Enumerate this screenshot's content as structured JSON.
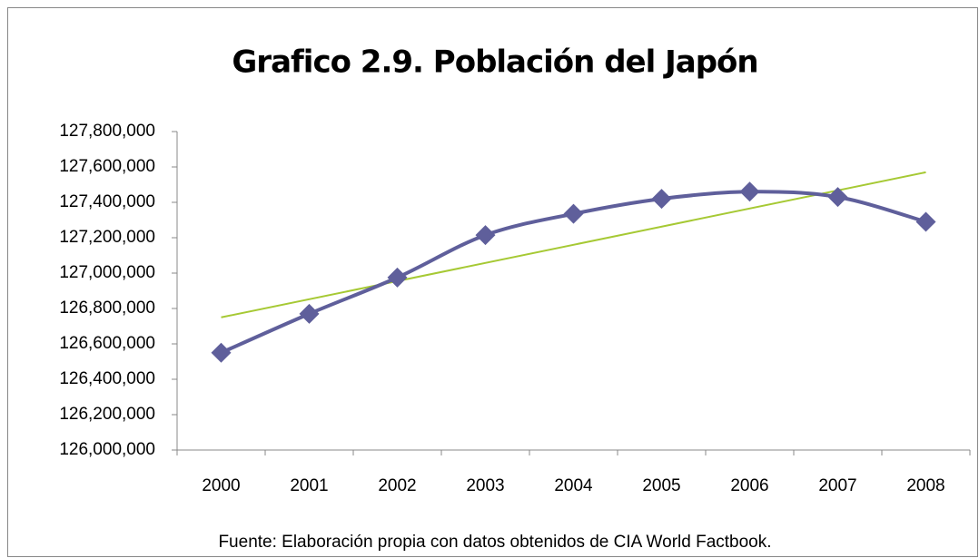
{
  "chart_data": {
    "type": "line",
    "title": "Grafico 2.9. Población del Japón",
    "source": "Fuente: Elaboración propia con datos obtenidos de CIA World Factbook.",
    "categories": [
      "2000",
      "2001",
      "2002",
      "2003",
      "2004",
      "2005",
      "2006",
      "2007",
      "2008"
    ],
    "series": [
      {
        "color": "#5f5f9b",
        "values": [
          126550000,
          126770000,
          126975000,
          127215000,
          127335000,
          127420000,
          127460000,
          127430000,
          127290000
        ]
      }
    ],
    "trendline": {
      "color": "#a6c934",
      "values": [
        126750000,
        127570000
      ]
    },
    "ylim": [
      126000000,
      127800000
    ],
    "yticks": [
      {
        "value": 126000000,
        "label": "126,000,000"
      },
      {
        "value": 126200000,
        "label": "126,200,000"
      },
      {
        "value": 126400000,
        "label": "126,400,000"
      },
      {
        "value": 126600000,
        "label": "126,600,000"
      },
      {
        "value": 126800000,
        "label": "126,800,000"
      },
      {
        "value": 127000000,
        "label": "127,000,000"
      },
      {
        "value": 127200000,
        "label": "127,200,000"
      },
      {
        "value": 127400000,
        "label": "127,400,000"
      },
      {
        "value": 127600000,
        "label": "127,600,000"
      },
      {
        "value": 127800000,
        "label": "127,800,000"
      }
    ],
    "grid": false
  }
}
